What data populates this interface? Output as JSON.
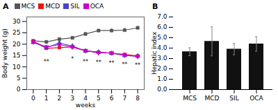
{
  "chart_data": [
    {
      "type": "line",
      "title": "A",
      "xlabel": "weeks",
      "ylabel": "Body weight (g)",
      "x": [
        0,
        1,
        2,
        3,
        4,
        5,
        6,
        7,
        8
      ],
      "xlim": [
        -0.5,
        8.5
      ],
      "xticks": [
        0,
        1,
        2,
        3,
        4,
        5,
        6,
        7,
        8
      ],
      "ylim": [
        0,
        32
      ],
      "yticks": [
        0,
        5,
        10,
        15,
        20,
        25,
        30
      ],
      "grid": false,
      "legend": "upper left",
      "series": [
        {
          "name": "MCS",
          "color": "#555555",
          "marker": "square",
          "line_style": "solid",
          "values": [
            21.5,
            21.0,
            22.2,
            22.8,
            24.5,
            26.0,
            26.0,
            26.2,
            27.2
          ],
          "errors": [
            0.5,
            0.7,
            0.7,
            0.6,
            0.8,
            0.7,
            0.8,
            0.9,
            0.8
          ]
        },
        {
          "name": "MCD",
          "color": "#ee1111",
          "marker": "square",
          "line_style": "solid",
          "values": [
            21.3,
            18.2,
            18.5,
            18.8,
            17.0,
            16.5,
            16.0,
            15.5,
            14.8
          ],
          "errors": [
            0.5,
            0.6,
            0.6,
            0.5,
            0.5,
            0.5,
            0.5,
            0.5,
            0.4
          ]
        },
        {
          "name": "SIL",
          "color": "#4444cc",
          "marker": "triangle-up",
          "line_style": "solid",
          "values": [
            20.8,
            18.5,
            20.5,
            19.2,
            17.0,
            16.5,
            16.0,
            15.0,
            14.8
          ],
          "errors": [
            0.5,
            0.6,
            0.7,
            0.6,
            0.5,
            0.5,
            0.5,
            0.4,
            0.4
          ]
        },
        {
          "name": "OCA",
          "color": "#cc00cc",
          "marker": "triangle-down",
          "line_style": "solid",
          "values": [
            21.0,
            18.8,
            19.8,
            18.8,
            17.2,
            16.2,
            16.2,
            15.2,
            14.6
          ],
          "errors": [
            0.5,
            0.6,
            0.8,
            0.5,
            0.4,
            0.4,
            0.4,
            0.4,
            0.4
          ]
        }
      ],
      "annotations": [
        {
          "x": 1,
          "y": 13.2,
          "text": "**"
        },
        {
          "x": 3,
          "y": 14.5,
          "text": "*"
        },
        {
          "x": 4,
          "y": 13.2,
          "text": "**"
        },
        {
          "x": 5,
          "y": 12.8,
          "text": "**"
        },
        {
          "x": 6,
          "y": 12.5,
          "text": "**"
        },
        {
          "x": 7,
          "y": 11.8,
          "text": "**"
        },
        {
          "x": 8,
          "y": 11.5,
          "text": "**"
        }
      ]
    },
    {
      "type": "bar",
      "title": "B",
      "ylabel": "Hepatic index",
      "categories": [
        "MCS",
        "MCD",
        "SIL",
        "OCA"
      ],
      "values": [
        3.65,
        4.65,
        3.9,
        4.4
      ],
      "errors": [
        0.38,
        1.4,
        0.55,
        0.7
      ],
      "color": "#111111",
      "ylim": [
        0,
        7
      ],
      "yticks": [
        0,
        1,
        2,
        3,
        4,
        5,
        6,
        7
      ],
      "grid": false
    }
  ]
}
